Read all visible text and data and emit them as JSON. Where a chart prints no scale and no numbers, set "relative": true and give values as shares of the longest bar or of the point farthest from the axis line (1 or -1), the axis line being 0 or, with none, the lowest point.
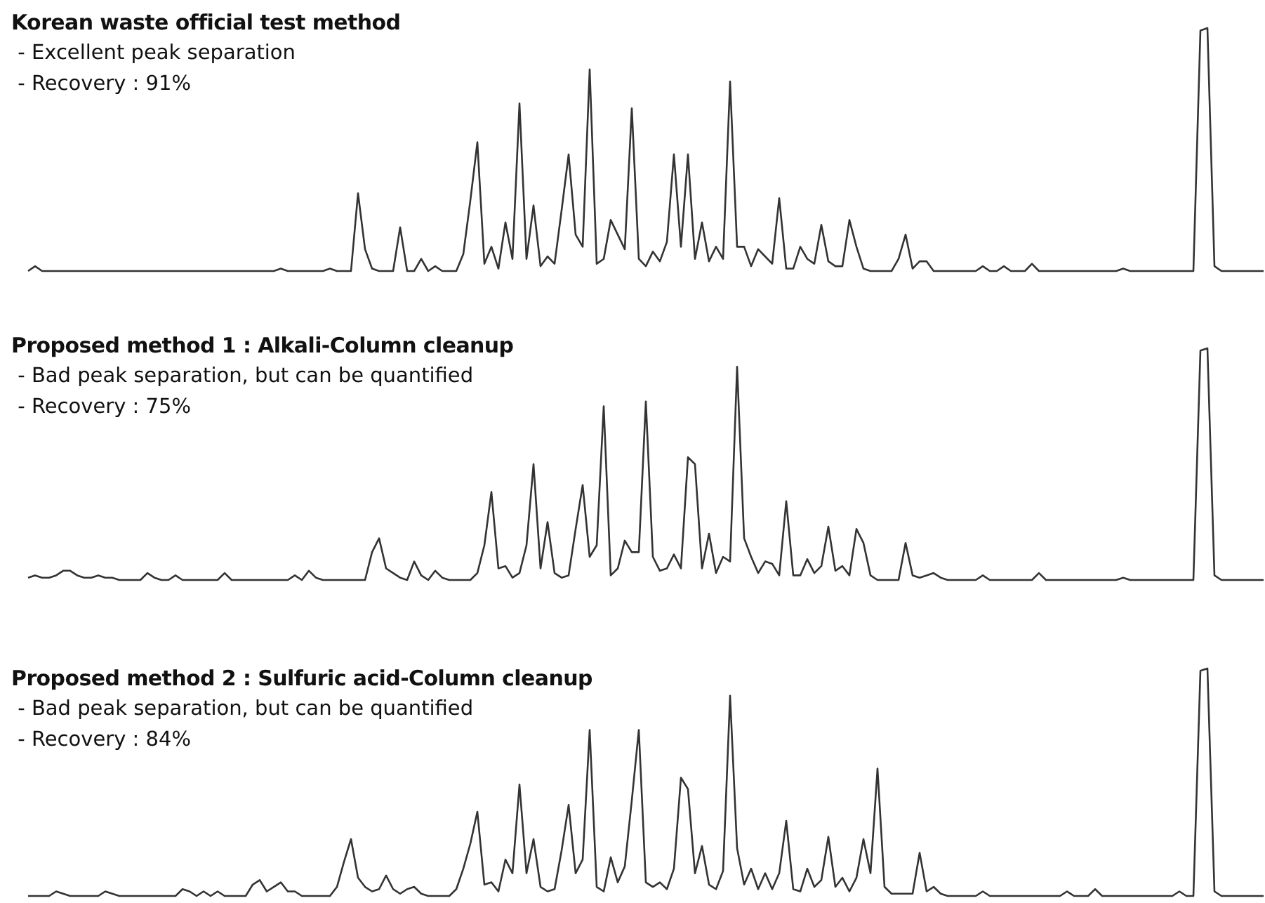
{
  "chart_data": [
    {
      "type": "line",
      "title": "Korean waste official test method",
      "annotations": [
        "- Excellent peak separation",
        "- Recovery : 91%"
      ],
      "relative": true,
      "tick_labels": false,
      "marker": "none",
      "line_style": "solid",
      "categories": [
        null,
        null,
        null,
        null,
        null,
        null,
        null,
        null,
        null,
        null,
        null,
        null,
        null,
        null,
        null,
        null,
        null,
        null,
        null,
        null,
        null,
        null,
        null,
        null,
        null,
        null,
        null,
        null,
        null,
        null,
        null,
        null,
        null,
        null,
        null,
        null,
        null,
        null,
        null,
        null,
        null,
        null,
        null,
        null,
        null,
        null,
        null,
        null,
        null,
        null,
        null,
        null,
        null,
        null,
        null,
        null,
        null,
        null,
        null,
        null,
        null,
        null,
        null,
        null,
        null,
        null,
        null,
        null,
        null,
        null,
        null,
        null,
        null,
        null,
        null,
        null,
        null,
        null,
        null,
        null,
        null,
        null,
        null,
        null,
        null,
        null,
        null,
        null,
        null,
        null,
        null,
        null,
        null,
        null,
        null,
        null,
        null,
        null,
        null,
        null,
        null,
        null,
        null,
        null,
        null,
        null,
        null,
        null,
        null,
        null,
        null,
        null,
        null,
        null,
        null,
        null,
        null,
        null,
        null,
        null,
        null,
        null,
        null,
        null,
        null,
        null,
        null,
        null,
        null,
        null,
        null,
        null,
        null,
        null,
        null,
        null,
        null,
        null,
        null,
        null,
        null,
        null,
        null,
        null,
        null,
        null,
        null,
        null,
        null,
        null,
        null,
        null,
        null,
        null,
        null,
        null,
        null,
        null,
        null,
        null,
        null,
        null,
        null,
        null,
        null,
        null,
        null,
        null,
        null,
        null,
        null,
        null,
        null,
        null,
        null,
        null,
        null
      ],
      "series": [
        {
          "color": "#333333",
          "values": [
            0,
            0.02,
            0,
            0,
            0,
            0,
            0,
            0,
            0,
            0,
            0,
            0,
            0,
            0,
            0,
            0,
            0,
            0,
            0,
            0,
            0,
            0,
            0,
            0,
            0,
            0,
            0,
            0,
            0,
            0,
            0,
            0,
            0,
            0,
            0,
            0,
            0.01,
            0,
            0,
            0,
            0,
            0,
            0,
            0.01,
            0,
            0,
            0,
            0.32,
            0.09,
            0.01,
            0,
            0,
            0,
            0.18,
            0,
            0,
            0.05,
            0,
            0.02,
            0,
            0,
            0,
            0.07,
            0.29,
            0.53,
            0.03,
            0.1,
            0.01,
            0.2,
            0.05,
            0.69,
            0.05,
            0.27,
            0.02,
            0.06,
            0.03,
            0.25,
            0.48,
            0.15,
            0.1,
            0.83,
            0.03,
            0.05,
            0.21,
            0.15,
            0.09,
            0.67,
            0.05,
            0.02,
            0.08,
            0.04,
            0.12,
            0.48,
            0.1,
            0.48,
            0.05,
            0.2,
            0.04,
            0.1,
            0.05,
            0.78,
            0.1,
            0.1,
            0.02,
            0.09,
            0.06,
            0.03,
            0.3,
            0.01,
            0.01,
            0.1,
            0.05,
            0.03,
            0.19,
            0.04,
            0.02,
            0.02,
            0.21,
            0.1,
            0.01,
            0,
            0,
            0,
            0,
            0.05,
            0.15,
            0.01,
            0.04,
            0.04,
            0,
            0,
            0,
            0,
            0,
            0,
            0,
            0.02,
            0,
            0,
            0.02,
            0,
            0,
            0,
            0.03,
            0,
            0,
            0,
            0,
            0,
            0,
            0,
            0,
            0,
            0,
            0,
            0,
            0.01,
            0,
            0,
            0,
            0,
            0,
            0,
            0,
            0,
            0,
            0,
            0.99,
            1,
            0.02,
            0,
            0,
            0,
            0,
            0,
            0,
            0
          ]
        }
      ]
    },
    {
      "type": "line",
      "title": "Proposed method 1 : Alkali-Column cleanup",
      "annotations": [
        "- Bad peak separation, but can be quantified",
        "- Recovery : 75%"
      ],
      "relative": true,
      "tick_labels": false,
      "marker": "none",
      "line_style": "solid",
      "categories": [
        null,
        null,
        null,
        null,
        null,
        null,
        null,
        null,
        null,
        null,
        null,
        null,
        null,
        null,
        null,
        null,
        null,
        null,
        null,
        null,
        null,
        null,
        null,
        null,
        null,
        null,
        null,
        null,
        null,
        null,
        null,
        null,
        null,
        null,
        null,
        null,
        null,
        null,
        null,
        null,
        null,
        null,
        null,
        null,
        null,
        null,
        null,
        null,
        null,
        null,
        null,
        null,
        null,
        null,
        null,
        null,
        null,
        null,
        null,
        null,
        null,
        null,
        null,
        null,
        null,
        null,
        null,
        null,
        null,
        null,
        null,
        null,
        null,
        null,
        null,
        null,
        null,
        null,
        null,
        null,
        null,
        null,
        null,
        null,
        null,
        null,
        null,
        null,
        null,
        null,
        null,
        null,
        null,
        null,
        null,
        null,
        null,
        null,
        null,
        null,
        null,
        null,
        null,
        null,
        null,
        null,
        null,
        null,
        null,
        null,
        null,
        null,
        null,
        null,
        null,
        null,
        null,
        null,
        null,
        null,
        null,
        null,
        null,
        null,
        null,
        null,
        null,
        null,
        null,
        null,
        null,
        null,
        null,
        null,
        null,
        null,
        null,
        null,
        null,
        null,
        null,
        null,
        null,
        null,
        null,
        null,
        null,
        null,
        null,
        null,
        null,
        null,
        null,
        null,
        null,
        null,
        null,
        null,
        null,
        null,
        null,
        null,
        null,
        null,
        null,
        null,
        null,
        null,
        null,
        null,
        null,
        null,
        null,
        null,
        null,
        null,
        null
      ],
      "series": [
        {
          "color": "#333333",
          "values": [
            0.01,
            0.02,
            0.01,
            0.01,
            0.02,
            0.04,
            0.04,
            0.02,
            0.01,
            0.01,
            0.02,
            0.01,
            0.01,
            0,
            0,
            0,
            0,
            0.03,
            0.01,
            0,
            0,
            0.02,
            0,
            0,
            0,
            0,
            0,
            0,
            0.03,
            0,
            0,
            0,
            0,
            0,
            0,
            0,
            0,
            0,
            0.02,
            0,
            0.04,
            0.01,
            0,
            0,
            0,
            0,
            0,
            0,
            0,
            0.12,
            0.18,
            0.05,
            0.03,
            0.01,
            0,
            0.08,
            0.02,
            0,
            0.04,
            0.01,
            0,
            0,
            0,
            0,
            0.03,
            0.15,
            0.38,
            0.05,
            0.06,
            0.01,
            0.03,
            0.15,
            0.5,
            0.05,
            0.25,
            0.03,
            0.01,
            0.02,
            0.22,
            0.41,
            0.1,
            0.15,
            0.75,
            0.02,
            0.05,
            0.17,
            0.12,
            0.12,
            0.77,
            0.1,
            0.04,
            0.05,
            0.11,
            0.05,
            0.53,
            0.5,
            0.05,
            0.2,
            0.03,
            0.1,
            0.08,
            0.92,
            0.18,
            0.1,
            0.03,
            0.08,
            0.07,
            0.02,
            0.34,
            0.02,
            0.02,
            0.09,
            0.03,
            0.06,
            0.23,
            0.04,
            0.06,
            0.02,
            0.22,
            0.16,
            0.02,
            0,
            0,
            0,
            0,
            0.16,
            0.02,
            0.01,
            0.02,
            0.03,
            0.01,
            0,
            0,
            0,
            0,
            0,
            0.02,
            0,
            0,
            0,
            0,
            0,
            0,
            0,
            0.03,
            0,
            0,
            0,
            0,
            0,
            0,
            0,
            0,
            0,
            0,
            0,
            0.01,
            0,
            0,
            0,
            0,
            0,
            0,
            0,
            0,
            0,
            0,
            0.99,
            1,
            0.02,
            0,
            0,
            0,
            0,
            0,
            0,
            0
          ]
        }
      ]
    },
    {
      "type": "line",
      "title": "Proposed method 2 : Sulfuric acid-Column cleanup",
      "annotations": [
        "- Bad peak separation, but can be quantified",
        "- Recovery : 84%"
      ],
      "relative": true,
      "tick_labels": false,
      "marker": "none",
      "line_style": "solid",
      "categories": [
        null,
        null,
        null,
        null,
        null,
        null,
        null,
        null,
        null,
        null,
        null,
        null,
        null,
        null,
        null,
        null,
        null,
        null,
        null,
        null,
        null,
        null,
        null,
        null,
        null,
        null,
        null,
        null,
        null,
        null,
        null,
        null,
        null,
        null,
        null,
        null,
        null,
        null,
        null,
        null,
        null,
        null,
        null,
        null,
        null,
        null,
        null,
        null,
        null,
        null,
        null,
        null,
        null,
        null,
        null,
        null,
        null,
        null,
        null,
        null,
        null,
        null,
        null,
        null,
        null,
        null,
        null,
        null,
        null,
        null,
        null,
        null,
        null,
        null,
        null,
        null,
        null,
        null,
        null,
        null,
        null,
        null,
        null,
        null,
        null,
        null,
        null,
        null,
        null,
        null,
        null,
        null,
        null,
        null,
        null,
        null,
        null,
        null,
        null,
        null,
        null,
        null,
        null,
        null,
        null,
        null,
        null,
        null,
        null,
        null,
        null,
        null,
        null,
        null,
        null,
        null,
        null,
        null,
        null,
        null,
        null,
        null,
        null,
        null,
        null,
        null,
        null,
        null,
        null,
        null,
        null,
        null,
        null,
        null,
        null,
        null,
        null,
        null,
        null,
        null,
        null,
        null,
        null,
        null,
        null,
        null,
        null,
        null,
        null,
        null,
        null,
        null,
        null,
        null,
        null,
        null,
        null,
        null,
        null,
        null,
        null,
        null,
        null,
        null,
        null,
        null,
        null,
        null,
        null,
        null,
        null,
        null,
        null,
        null,
        null,
        null,
        null
      ],
      "series": [
        {
          "color": "#333333",
          "values": [
            0,
            0,
            0,
            0,
            0.02,
            0.01,
            0,
            0,
            0,
            0,
            0,
            0.02,
            0.01,
            0,
            0,
            0,
            0,
            0,
            0,
            0,
            0,
            0,
            0.03,
            0.02,
            0,
            0.02,
            0,
            0.02,
            0,
            0,
            0,
            0,
            0.05,
            0.07,
            0.02,
            0.04,
            0.06,
            0.02,
            0.02,
            0,
            0,
            0,
            0,
            0,
            0.04,
            0.15,
            0.25,
            0.08,
            0.04,
            0.02,
            0.03,
            0.09,
            0.03,
            0.01,
            0.03,
            0.04,
            0.01,
            0,
            0,
            0,
            0,
            0.03,
            0.12,
            0.23,
            0.37,
            0.05,
            0.06,
            0.02,
            0.16,
            0.1,
            0.49,
            0.1,
            0.25,
            0.04,
            0.02,
            0.03,
            0.2,
            0.4,
            0.1,
            0.16,
            0.73,
            0.04,
            0.02,
            0.17,
            0.06,
            0.13,
            0.42,
            0.73,
            0.06,
            0.04,
            0.06,
            0.03,
            0.12,
            0.52,
            0.47,
            0.1,
            0.22,
            0.05,
            0.03,
            0.11,
            0.88,
            0.21,
            0.05,
            0.12,
            0.03,
            0.1,
            0.03,
            0.1,
            0.33,
            0.03,
            0.02,
            0.12,
            0.04,
            0.07,
            0.26,
            0.04,
            0.08,
            0.02,
            0.08,
            0.25,
            0.1,
            0.56,
            0.04,
            0.01,
            0.01,
            0.01,
            0.01,
            0.19,
            0.02,
            0.04,
            0.01,
            0,
            0,
            0,
            0,
            0,
            0.02,
            0,
            0,
            0,
            0,
            0,
            0,
            0,
            0,
            0,
            0,
            0,
            0.02,
            0,
            0,
            0,
            0.03,
            0,
            0,
            0,
            0,
            0,
            0,
            0,
            0,
            0,
            0,
            0,
            0.02,
            0,
            0,
            0.99,
            1,
            0.02,
            0,
            0,
            0,
            0,
            0,
            0,
            0
          ]
        }
      ]
    }
  ]
}
